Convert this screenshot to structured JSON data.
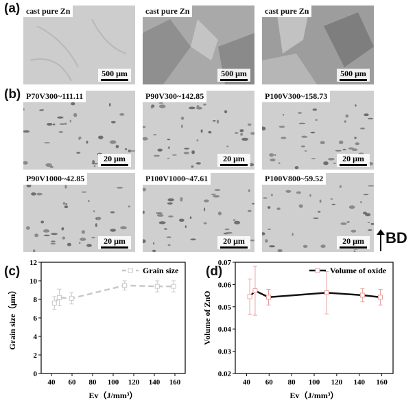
{
  "panel_a": {
    "letter": "(a)",
    "images": [
      {
        "label": "cast pure Zn",
        "scale": "500 μm",
        "tone": "#cfcfcf"
      },
      {
        "label": "cast pure Zn",
        "scale": "500 μm",
        "tone": "#a9a9a9"
      },
      {
        "label": "cast pure Zn",
        "scale": "500 μm",
        "tone": "#9c9c9c"
      }
    ]
  },
  "panel_b": {
    "letter": "(b)",
    "images": [
      {
        "label": "P70V300~111.11",
        "scale": "20 μm"
      },
      {
        "label": "P90V300~142.85",
        "scale": "20 μm"
      },
      {
        "label": "P100V300~158.73",
        "scale": "20 μm"
      },
      {
        "label": "P90V1000~42.85",
        "scale": "20 μm"
      },
      {
        "label": "P100V1000~47.61",
        "scale": "20 μm"
      },
      {
        "label": "P100V800~59.52",
        "scale": "20 μm"
      }
    ],
    "build_direction": "BD"
  },
  "panel_c": {
    "letter": "(c)",
    "chart_data": {
      "type": "line",
      "title": "",
      "xlabel": "Ev（J/mm³）",
      "ylabel": "Grain size（μm）",
      "xlim": [
        30,
        170
      ],
      "ylim": [
        0,
        12
      ],
      "xticks": [
        40,
        60,
        80,
        100,
        120,
        140,
        160
      ],
      "yticks": [
        0,
        2,
        4,
        6,
        8,
        10,
        12
      ],
      "legend_position": "top-right",
      "series": [
        {
          "name": "Grain size",
          "color": "#c8c8c8",
          "linestyle": "dashed",
          "x": [
            42.85,
            47.61,
            59.52,
            111.11,
            142.85,
            158.73
          ],
          "y": [
            7.6,
            8.2,
            8.1,
            9.5,
            9.4,
            9.4
          ],
          "err": [
            0.7,
            0.9,
            0.6,
            0.5,
            0.6,
            0.6
          ]
        }
      ]
    }
  },
  "panel_d": {
    "letter": "(d)",
    "chart_data": {
      "type": "line",
      "title": "",
      "xlabel": "Ev（J/mm³）",
      "ylabel": "Volume of ZnO",
      "xlim": [
        30,
        170
      ],
      "ylim": [
        0.02,
        0.07
      ],
      "xticks": [
        40,
        60,
        80,
        100,
        120,
        140,
        160
      ],
      "yticks": [
        0.02,
        0.03,
        0.04,
        0.05,
        0.06,
        0.07
      ],
      "legend_position": "top-right",
      "series": [
        {
          "name": "Volume  of  oxide",
          "color": "#111111",
          "error_color": "#e8a0a0",
          "x": [
            42.85,
            47.61,
            59.52,
            111.11,
            142.85,
            158.73
          ],
          "y": [
            0.0545,
            0.0572,
            0.0543,
            0.0563,
            0.0552,
            0.0543
          ],
          "err": [
            0.008,
            0.011,
            0.0035,
            0.0095,
            0.003,
            0.0035
          ]
        }
      ]
    }
  }
}
